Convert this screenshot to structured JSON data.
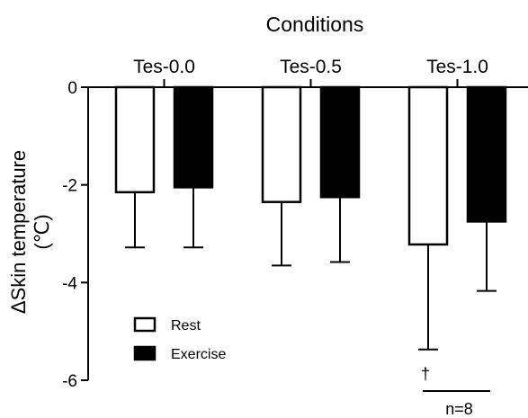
{
  "chart_data": {
    "type": "bar",
    "title": "Conditions",
    "ylabel_line1": "ΔSkin temperature",
    "ylabel_line2": "(℃)",
    "xlabel": "",
    "ylim": [
      -6,
      0
    ],
    "yticks": [
      0,
      -2,
      -4,
      -6
    ],
    "categories": [
      "Tes-0.0",
      "Tes-0.5",
      "Tes-1.0"
    ],
    "series": [
      {
        "name": "Rest",
        "fill": "#ffffff",
        "values": [
          -2.15,
          -2.35,
          -3.22
        ],
        "errors": [
          1.13,
          1.3,
          2.15
        ]
      },
      {
        "name": "Exercise",
        "fill": "#000000",
        "values": [
          -2.05,
          -2.25,
          -2.75
        ],
        "errors": [
          1.23,
          1.33,
          1.42
        ]
      }
    ],
    "legend_position": "bottom-left",
    "annotations": {
      "dagger": "†",
      "n": "n=8"
    }
  }
}
